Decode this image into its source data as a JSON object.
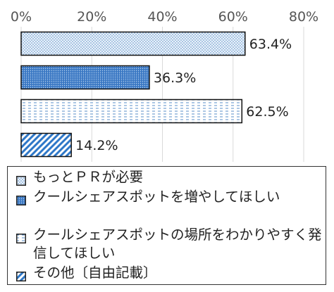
{
  "chart_data": {
    "type": "bar",
    "orientation": "horizontal",
    "categories": [
      "もっとＰＲが必要",
      "クールシェアスポットを増やしてほしい",
      "クールシェアスポットの場所をわかりやすく発信してほしい",
      "その他〔自由記載〕"
    ],
    "values": [
      63.4,
      36.3,
      62.5,
      14.2
    ],
    "data_labels": [
      "63.4%",
      "36.3%",
      "62.5%",
      "14.2%"
    ],
    "xlim": [
      0,
      80
    ],
    "xticks": [
      0,
      20,
      40,
      60,
      80
    ],
    "xtick_labels": [
      "0%",
      "20%",
      "40%",
      "60%",
      "80%"
    ],
    "grid": true,
    "legend_position": "bottom",
    "title": "",
    "xlabel": "",
    "ylabel": "",
    "colors": [
      "#d4e4f2",
      "#4a86d0",
      "#ffffff",
      "#2f78c8"
    ],
    "patterns": [
      "dots",
      "dense-dots",
      "dashes",
      "diagonal-stripes"
    ]
  },
  "legend": {
    "items": [
      {
        "label": "もっとＰＲが必要"
      },
      {
        "label": "クールシェアスポットを増やしてほしい"
      },
      {
        "label": "クールシェアスポットの場所をわかりやすく発信してほしい"
      },
      {
        "label": "その他〔自由記載〕"
      }
    ]
  }
}
